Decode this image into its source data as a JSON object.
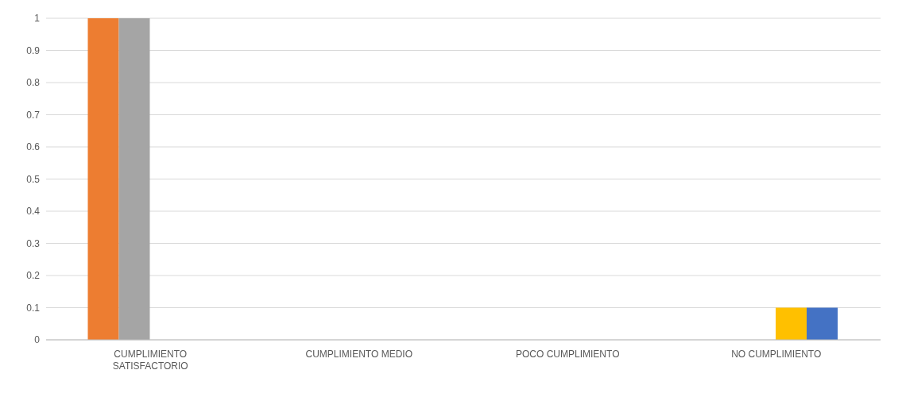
{
  "chart_data": {
    "type": "bar",
    "categories": [
      "CUMPLIMIENTO SATISFACTORIO",
      "CUMPLIMIENTO MEDIO",
      "POCO CUMPLIMIENTO",
      "NO CUMPLIMIENTO"
    ],
    "series": [
      {
        "color": "#ed7d31",
        "values": [
          1,
          0,
          0,
          0
        ]
      },
      {
        "color": "#a5a5a5",
        "values": [
          1,
          0,
          0,
          0
        ]
      },
      {
        "color": "#ffc000",
        "values": [
          0,
          0,
          0,
          0.1
        ]
      },
      {
        "color": "#4472c4",
        "values": [
          0,
          0,
          0,
          0.1
        ]
      }
    ],
    "ylim": [
      0,
      1
    ],
    "yticks": [
      0,
      {
        "value": 0.1,
        "label": "0.1"
      },
      {
        "value": 0.2,
        "label": "0.2"
      },
      {
        "value": 0.3,
        "label": "0.3"
      },
      {
        "value": 0.4,
        "label": "0.4"
      },
      {
        "value": 0.5,
        "label": "0.5"
      },
      {
        "value": 0.6,
        "label": "0.6"
      },
      {
        "value": 0.7,
        "label": "0.7"
      },
      {
        "value": 0.8,
        "label": "0.8"
      },
      {
        "value": 0.9,
        "label": "0.9"
      },
      1
    ],
    "grid": "y",
    "legend": false
  }
}
